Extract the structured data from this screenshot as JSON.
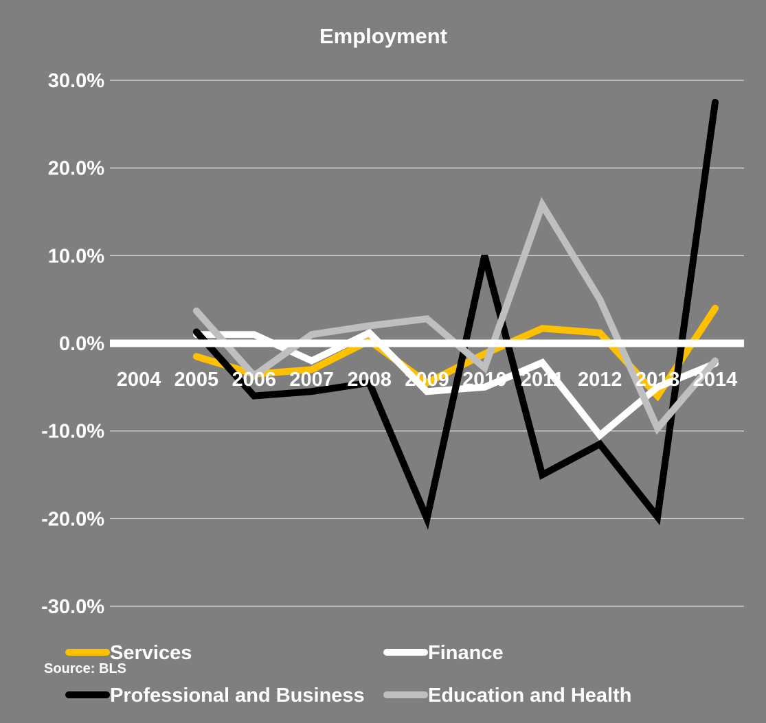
{
  "chart_data": {
    "type": "line",
    "title": "Employment",
    "source": "Source: BLS",
    "categories": [
      "2004",
      "2005",
      "2006",
      "2007",
      "2008",
      "2009",
      "2010",
      "2011",
      "2012",
      "2013",
      "2014"
    ],
    "y_ticks": [
      "30.0%",
      "20.0%",
      "10.0%",
      "0.0%",
      "-10.0%",
      "-20.0%",
      "-30.0%"
    ],
    "ylim": [
      -30,
      30
    ],
    "grid": true,
    "legend_position": "bottom",
    "series": [
      {
        "name": "Services",
        "color": "#ffc000",
        "values": [
          null,
          -1.5,
          -3.5,
          -3.0,
          0.3,
          -4.5,
          -1.2,
          1.7,
          1.2,
          -6.0,
          4.0
        ]
      },
      {
        "name": "Finance",
        "color": "#ffffff",
        "values": [
          null,
          1.0,
          1.0,
          -2.0,
          1.2,
          -5.5,
          -5.0,
          -2.2,
          -10.5,
          -5.0,
          -2.3
        ]
      },
      {
        "name": "Professional and Business",
        "color": "#000000",
        "values": [
          null,
          1.3,
          -6.0,
          -5.5,
          -4.5,
          -20.0,
          10.0,
          -15.0,
          -11.5,
          -19.8,
          27.5
        ]
      },
      {
        "name": "Education and Health",
        "color": "#bfbfbf",
        "values": [
          null,
          3.7,
          -3.7,
          1.0,
          2.0,
          2.8,
          -2.8,
          15.8,
          5.0,
          -9.7,
          -2.0
        ]
      }
    ]
  }
}
